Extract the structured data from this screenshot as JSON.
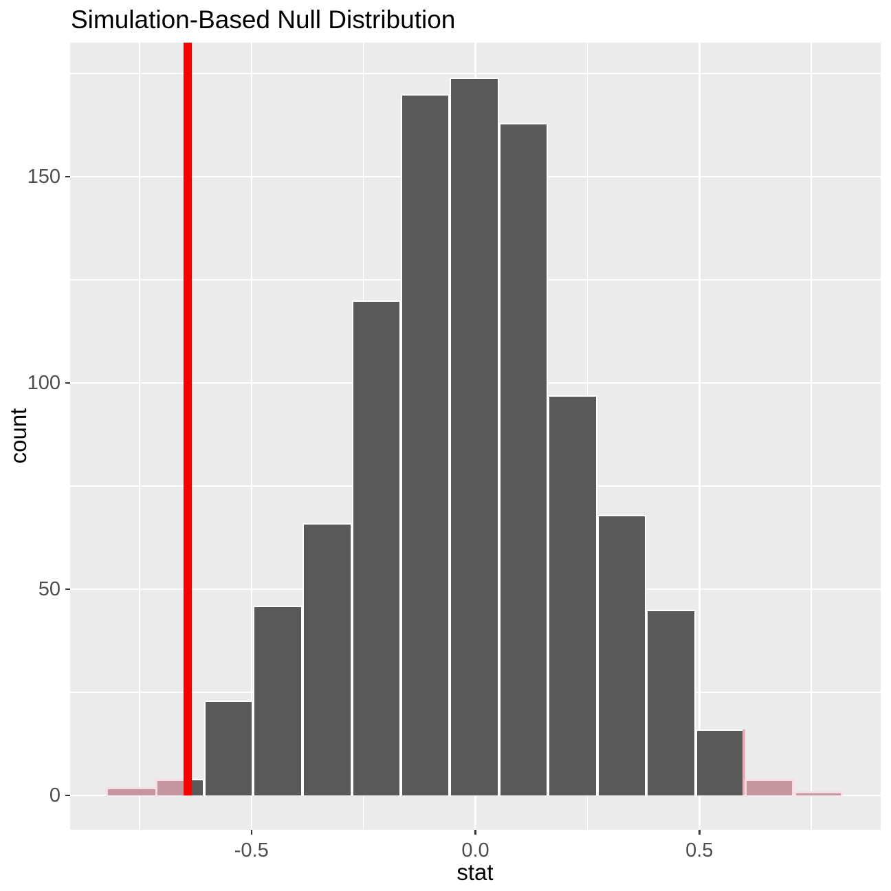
{
  "title": "Simulation-Based Null Distribution",
  "x_axis": {
    "label": "stat",
    "ticks": [
      {
        "value": -0.5,
        "label": "-0.5"
      },
      {
        "value": 0.0,
        "label": "0.0"
      },
      {
        "value": 0.5,
        "label": "0.5"
      }
    ],
    "minor_ticks": [
      -0.75,
      -0.25,
      0.25,
      0.75
    ]
  },
  "y_axis": {
    "label": "count",
    "ticks": [
      {
        "value": 0,
        "label": "0"
      },
      {
        "value": 50,
        "label": "50"
      },
      {
        "value": 100,
        "label": "100"
      },
      {
        "value": 150,
        "label": "150"
      }
    ],
    "minor_ticks": [
      25,
      75,
      125,
      175
    ]
  },
  "chart_data": {
    "type": "bar",
    "subtype": "simulation-null-histogram",
    "title": "Simulation-Based Null Distribution",
    "xlabel": "stat",
    "ylabel": "count",
    "xlim": [
      -0.91,
      0.9
    ],
    "ylim": [
      0,
      183
    ],
    "grid": "white major and minor gridlines on gray panel",
    "legend": "none",
    "bin_edges": [
      -0.825,
      -0.715,
      -0.605,
      -0.496,
      -0.386,
      -0.276,
      -0.167,
      -0.057,
      0.053,
      0.162,
      0.272,
      0.382,
      0.492,
      0.601,
      0.711,
      0.82
    ],
    "counts": [
      2,
      4,
      23,
      46,
      66,
      120,
      170,
      174,
      163,
      97,
      68,
      45,
      16,
      4,
      1
    ],
    "observed_stat_line": -0.642,
    "shade_segments_left": [
      {
        "from": -0.825,
        "to": -0.715,
        "count": 2
      },
      {
        "from": -0.715,
        "to": -0.642,
        "count": 4
      }
    ],
    "shade_segments_right": [
      {
        "from": 0.5965,
        "to": 0.601,
        "count": 16
      },
      {
        "from": 0.601,
        "to": 0.711,
        "count": 4
      },
      {
        "from": 0.711,
        "to": 0.82,
        "count": 1
      }
    ],
    "colors": {
      "bar": "#595959",
      "bar_border": "#FFFFFF",
      "shade_fill": "#C4969F",
      "shade_border": "#FADCE2",
      "shade_sliver": "#E8ABB8",
      "obs_line": "#FA0000",
      "panel": "#EBEBEB",
      "grid": "#FFFFFF",
      "tick_mark": "#333333",
      "tick_label": "#4D4D4D",
      "axis_title": "#000000"
    }
  }
}
